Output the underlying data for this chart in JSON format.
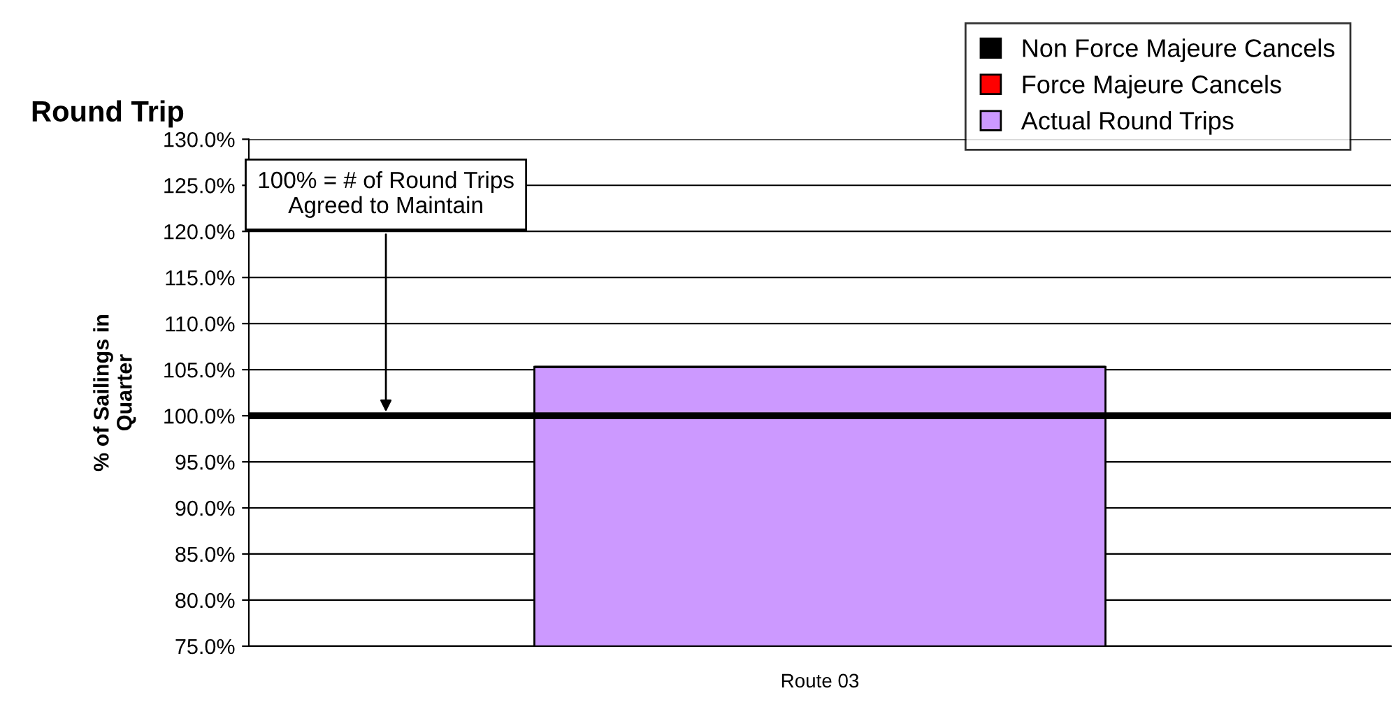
{
  "chart_data": {
    "type": "bar",
    "title": "Round Trip",
    "ylabel": "% of Sailings in\nQuarter",
    "categories": [
      "Route 03"
    ],
    "stacked": true,
    "series": [
      {
        "name": "Actual Round Trips",
        "color": "#cc99ff",
        "values": [
          105.3
        ]
      },
      {
        "name": "Force Majeure Cancels",
        "color": "#ff0000",
        "values": [
          null
        ]
      },
      {
        "name": "Non Force Majeure Cancels",
        "color": "#000000",
        "values": [
          null
        ]
      }
    ],
    "ylim": [
      75,
      130
    ],
    "yticks": [
      {
        "value": 75,
        "label": "75.0%"
      },
      {
        "value": 80,
        "label": "80.0%"
      },
      {
        "value": 85,
        "label": "85.0%"
      },
      {
        "value": 90,
        "label": "90.0%"
      },
      {
        "value": 95,
        "label": "95.0%"
      },
      {
        "value": 100,
        "label": "100.0%"
      },
      {
        "value": 105,
        "label": "105.0%"
      },
      {
        "value": 110,
        "label": "110.0%"
      },
      {
        "value": 115,
        "label": "115.0%"
      },
      {
        "value": 120,
        "label": "120.0%"
      },
      {
        "value": 125,
        "label": "125.0%"
      },
      {
        "value": 130,
        "label": "130.0%"
      }
    ],
    "grid": "y",
    "legend": "top right",
    "ref_lines": [
      {
        "axis": "y",
        "value": 100,
        "color": "#000000"
      }
    ],
    "annotations": [
      {
        "text": "100% = # of Round Trips\nAgreed to Maintain",
        "y": 100
      }
    ]
  }
}
